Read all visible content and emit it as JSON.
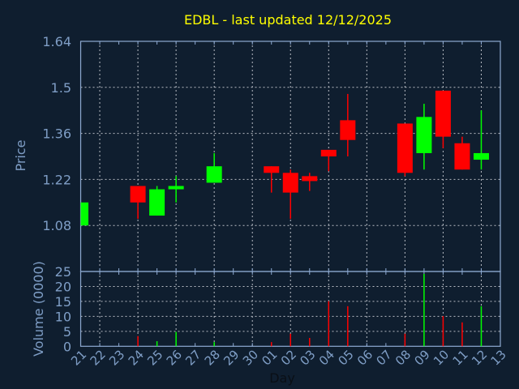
{
  "chart_data": [
    {
      "type": "candlestick",
      "title": "EDBL - last updated 12/12/2025",
      "ylabel": "Price",
      "xlabel": "",
      "ylim": [
        0.94,
        1.64
      ],
      "yticks": [
        "1.64",
        "1.5",
        "1.36",
        "1.22",
        "1.08"
      ],
      "grid": true,
      "colors": {
        "up": "#00ff00",
        "down": "#ff0000"
      },
      "candles": [
        {
          "day": "21",
          "open": 1.08,
          "high": 1.15,
          "low": 1.08,
          "close": 1.15
        },
        {
          "day": "24",
          "open": 1.2,
          "high": 1.2,
          "low": 1.1,
          "close": 1.15
        },
        {
          "day": "25",
          "open": 1.11,
          "high": 1.2,
          "low": 1.11,
          "close": 1.19
        },
        {
          "day": "26",
          "open": 1.19,
          "high": 1.23,
          "low": 1.15,
          "close": 1.2
        },
        {
          "day": "28",
          "open": 1.21,
          "high": 1.3,
          "low": 1.21,
          "close": 1.26
        },
        {
          "day": "01",
          "open": 1.26,
          "high": 1.26,
          "low": 1.18,
          "close": 1.24
        },
        {
          "day": "02",
          "open": 1.24,
          "high": 1.25,
          "low": 1.1,
          "close": 1.18
        },
        {
          "day": "03",
          "open": 1.23,
          "high": 1.24,
          "low": 1.185,
          "close": 1.215
        },
        {
          "day": "04",
          "open": 1.31,
          "high": 1.31,
          "low": 1.245,
          "close": 1.29
        },
        {
          "day": "05",
          "open": 1.4,
          "high": 1.48,
          "low": 1.29,
          "close": 1.34
        },
        {
          "day": "08",
          "open": 1.39,
          "high": 1.39,
          "low": 1.23,
          "close": 1.24
        },
        {
          "day": "09",
          "open": 1.3,
          "high": 1.45,
          "low": 1.25,
          "close": 1.41
        },
        {
          "day": "10",
          "open": 1.49,
          "high": 1.49,
          "low": 1.315,
          "close": 1.35
        },
        {
          "day": "11",
          "open": 1.33,
          "high": 1.35,
          "low": 1.25,
          "close": 1.25
        },
        {
          "day": "12",
          "open": 1.28,
          "high": 1.43,
          "low": 1.25,
          "close": 1.3
        }
      ]
    },
    {
      "type": "bar",
      "ylabel": "Volume (0000)",
      "xlabel": "Day",
      "ylim": [
        0,
        25
      ],
      "yticks": [
        "25",
        "20",
        "15",
        "10",
        "5",
        "0"
      ],
      "grid": true,
      "categories": [
        "21",
        "22",
        "23",
        "24",
        "25",
        "26",
        "27",
        "28",
        "29",
        "30",
        "01",
        "02",
        "03",
        "04",
        "05",
        "06",
        "07",
        "08",
        "09",
        "10",
        "11",
        "12",
        "13"
      ],
      "volumes": [
        {
          "day": "24",
          "value": 3.4,
          "dir": "down"
        },
        {
          "day": "25",
          "value": 1.7,
          "dir": "up"
        },
        {
          "day": "26",
          "value": 4.8,
          "dir": "up"
        },
        {
          "day": "28",
          "value": 1.4,
          "dir": "up"
        },
        {
          "day": "01",
          "value": 1.4,
          "dir": "down"
        },
        {
          "day": "02",
          "value": 4.2,
          "dir": "down"
        },
        {
          "day": "03",
          "value": 2.8,
          "dir": "down"
        },
        {
          "day": "04",
          "value": 15.1,
          "dir": "down"
        },
        {
          "day": "05",
          "value": 13.4,
          "dir": "down"
        },
        {
          "day": "08",
          "value": 4.2,
          "dir": "down"
        },
        {
          "day": "09",
          "value": 24.2,
          "dir": "up"
        },
        {
          "day": "10",
          "value": 10.1,
          "dir": "down"
        },
        {
          "day": "11",
          "value": 8.0,
          "dir": "down"
        },
        {
          "day": "12",
          "value": 13.4,
          "dir": "up"
        }
      ]
    }
  ]
}
